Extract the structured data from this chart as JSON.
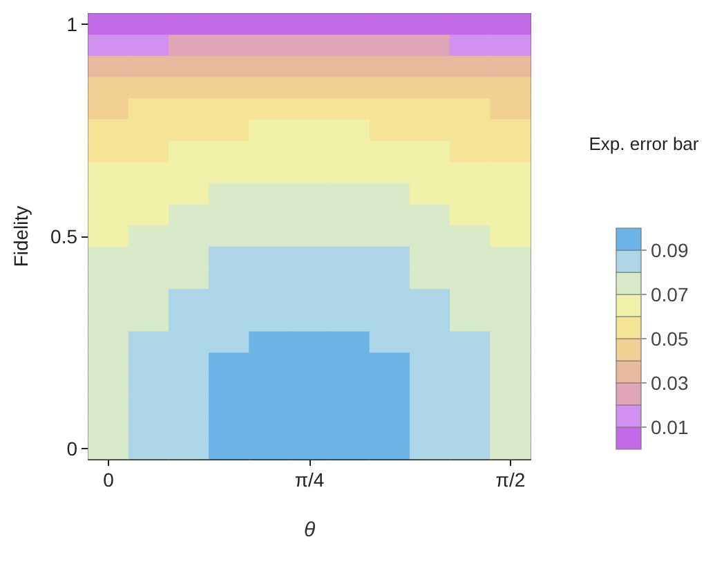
{
  "chart_data": {
    "type": "heatmap",
    "xlabel": "θ",
    "ylabel": "Fidelity",
    "clabel": "Exp. error bar",
    "categories": [
      "0",
      null,
      null,
      null,
      null,
      "π/4",
      null,
      null,
      null,
      null,
      "π/2"
    ],
    "y_categories": [
      "1",
      null,
      null,
      null,
      null,
      null,
      null,
      null,
      null,
      null,
      "0.5",
      null,
      null,
      null,
      null,
      null,
      null,
      null,
      null,
      null,
      "0"
    ],
    "cells": [
      [
        0.005,
        0.005,
        0.005,
        0.005,
        0.005,
        0.005,
        0.005,
        0.005,
        0.005,
        0.005,
        0.005
      ],
      [
        0.015,
        0.015,
        0.025,
        0.025,
        0.025,
        0.025,
        0.025,
        0.025,
        0.025,
        0.015,
        0.015
      ],
      [
        0.035,
        0.035,
        0.035,
        0.035,
        0.035,
        0.035,
        0.035,
        0.035,
        0.035,
        0.035,
        0.035
      ],
      [
        0.045,
        0.045,
        0.045,
        0.045,
        0.045,
        0.045,
        0.045,
        0.045,
        0.045,
        0.045,
        0.045
      ],
      [
        0.045,
        0.055,
        0.055,
        0.055,
        0.055,
        0.055,
        0.055,
        0.055,
        0.055,
        0.055,
        0.045
      ],
      [
        0.055,
        0.055,
        0.055,
        0.055,
        0.065,
        0.065,
        0.065,
        0.055,
        0.055,
        0.055,
        0.055
      ],
      [
        0.055,
        0.055,
        0.065,
        0.065,
        0.065,
        0.065,
        0.065,
        0.065,
        0.065,
        0.055,
        0.055
      ],
      [
        0.065,
        0.065,
        0.065,
        0.065,
        0.065,
        0.065,
        0.065,
        0.065,
        0.065,
        0.065,
        0.065
      ],
      [
        0.065,
        0.065,
        0.065,
        0.075,
        0.075,
        0.075,
        0.075,
        0.075,
        0.065,
        0.065,
        0.065
      ],
      [
        0.065,
        0.065,
        0.075,
        0.075,
        0.075,
        0.075,
        0.075,
        0.075,
        0.075,
        0.065,
        0.065
      ],
      [
        0.065,
        0.075,
        0.075,
        0.075,
        0.075,
        0.075,
        0.075,
        0.075,
        0.075,
        0.075,
        0.065
      ],
      [
        0.075,
        0.075,
        0.075,
        0.085,
        0.085,
        0.085,
        0.085,
        0.085,
        0.075,
        0.075,
        0.075
      ],
      [
        0.075,
        0.075,
        0.075,
        0.085,
        0.085,
        0.085,
        0.085,
        0.085,
        0.075,
        0.075,
        0.075
      ],
      [
        0.075,
        0.075,
        0.085,
        0.085,
        0.085,
        0.085,
        0.085,
        0.085,
        0.085,
        0.075,
        0.075
      ],
      [
        0.075,
        0.075,
        0.085,
        0.085,
        0.085,
        0.085,
        0.085,
        0.085,
        0.085,
        0.075,
        0.075
      ],
      [
        0.075,
        0.085,
        0.085,
        0.085,
        0.095,
        0.095,
        0.095,
        0.085,
        0.085,
        0.085,
        0.075
      ],
      [
        0.075,
        0.085,
        0.085,
        0.095,
        0.095,
        0.095,
        0.095,
        0.095,
        0.085,
        0.085,
        0.075
      ],
      [
        0.075,
        0.085,
        0.085,
        0.095,
        0.095,
        0.095,
        0.095,
        0.095,
        0.085,
        0.085,
        0.075
      ],
      [
        0.075,
        0.085,
        0.085,
        0.095,
        0.095,
        0.095,
        0.095,
        0.095,
        0.085,
        0.085,
        0.075
      ],
      [
        0.075,
        0.085,
        0.085,
        0.095,
        0.095,
        0.095,
        0.095,
        0.095,
        0.085,
        0.085,
        0.075
      ],
      [
        0.075,
        0.085,
        0.085,
        0.095,
        0.095,
        0.095,
        0.095,
        0.095,
        0.085,
        0.085,
        0.075
      ]
    ],
    "clim": [
      0,
      0.1
    ],
    "cticks": [
      0.01,
      0.03,
      0.05,
      0.07,
      0.09
    ],
    "colors": [
      "#c36ae8",
      "#d290f0",
      "#e0a6b8",
      "#eab89c",
      "#f2d094",
      "#f5e396",
      "#f0f0a8",
      "#d9eac8",
      "#acd5e8",
      "#6cb3e8"
    ]
  }
}
